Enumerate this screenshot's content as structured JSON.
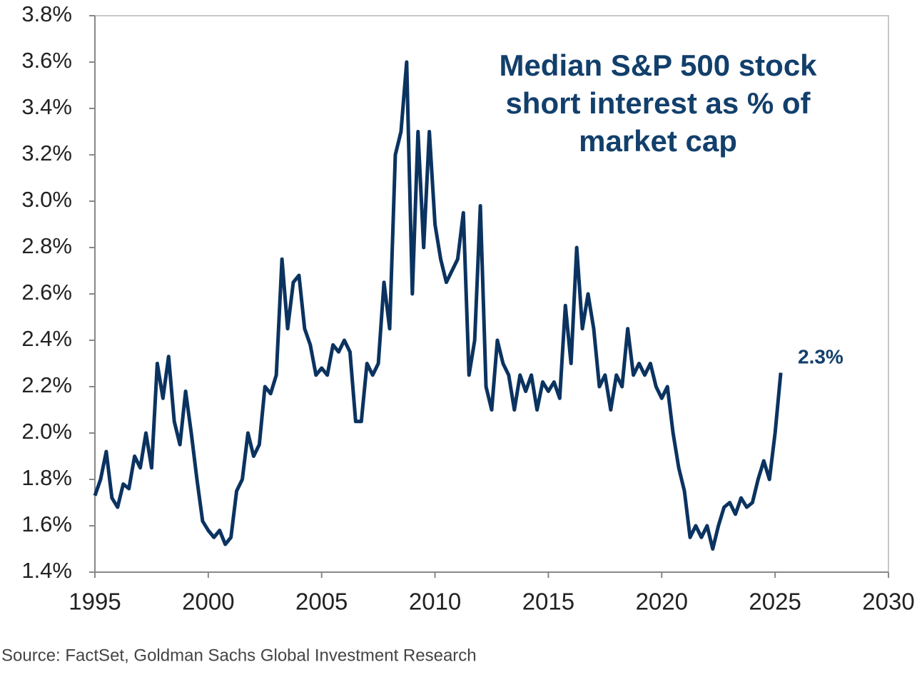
{
  "chart_data": {
    "type": "line",
    "title": [
      "Median S&P 500 stock",
      "short interest as % of",
      "market cap"
    ],
    "source": "Source: FactSet, Goldman Sachs Global Investment Research",
    "annotation": "2.3%",
    "xlim": [
      1995,
      2030
    ],
    "xticks": [
      1995,
      2000,
      2005,
      2010,
      2015,
      2020,
      2025,
      2030
    ],
    "ylim": [
      1.4,
      3.8
    ],
    "yticks": [
      {
        "value": 1.4,
        "label": "1.4%"
      },
      {
        "value": 1.6,
        "label": "1.6%"
      },
      {
        "value": 1.8,
        "label": "1.8%"
      },
      {
        "value": 2.0,
        "label": "2.0%"
      },
      {
        "value": 2.2,
        "label": "2.2%"
      },
      {
        "value": 2.4,
        "label": "2.4%"
      },
      {
        "value": 2.6,
        "label": "2.6%"
      },
      {
        "value": 2.8,
        "label": "2.8%"
      },
      {
        "value": 3.0,
        "label": "3.0%"
      },
      {
        "value": 3.2,
        "label": "3.2%"
      },
      {
        "value": 3.4,
        "label": "3.4%"
      },
      {
        "value": 3.6,
        "label": "3.6%"
      },
      {
        "value": 3.8,
        "label": "3.8%"
      }
    ],
    "x": [
      1995,
      1995.25,
      1995.5,
      1995.75,
      1996,
      1996.25,
      1996.5,
      1996.75,
      1997,
      1997.25,
      1997.5,
      1997.75,
      1998,
      1998.25,
      1998.5,
      1998.75,
      1999,
      1999.25,
      1999.5,
      1999.75,
      2000,
      2000.25,
      2000.5,
      2000.75,
      2001,
      2001.25,
      2001.5,
      2001.75,
      2002,
      2002.25,
      2002.5,
      2002.75,
      2003,
      2003.25,
      2003.5,
      2003.75,
      2004,
      2004.25,
      2004.5,
      2004.75,
      2005,
      2005.25,
      2005.5,
      2005.75,
      2006,
      2006.25,
      2006.5,
      2006.75,
      2007,
      2007.25,
      2007.5,
      2007.75,
      2008,
      2008.25,
      2008.5,
      2008.75,
      2009,
      2009.25,
      2009.5,
      2009.75,
      2010,
      2010.25,
      2010.5,
      2010.75,
      2011,
      2011.25,
      2011.5,
      2011.75,
      2012,
      2012.25,
      2012.5,
      2012.75,
      2013,
      2013.25,
      2013.5,
      2013.75,
      2014,
      2014.25,
      2014.5,
      2014.75,
      2015,
      2015.25,
      2015.5,
      2015.75,
      2016,
      2016.25,
      2016.5,
      2016.75,
      2017,
      2017.25,
      2017.5,
      2017.75,
      2018,
      2018.25,
      2018.5,
      2018.75,
      2019,
      2019.25,
      2019.5,
      2019.75,
      2020,
      2020.25,
      2020.5,
      2020.75,
      2021,
      2021.25,
      2021.5,
      2021.75,
      2022,
      2022.25,
      2022.5,
      2022.75,
      2023,
      2023.25,
      2023.5,
      2023.75,
      2024,
      2024.25,
      2024.5,
      2024.75,
      2025,
      2025.25
    ],
    "series": [
      {
        "color": "#0b3360",
        "values": [
          1.73,
          1.8,
          1.92,
          1.72,
          1.68,
          1.78,
          1.76,
          1.9,
          1.85,
          2.0,
          1.85,
          2.3,
          2.15,
          2.33,
          2.05,
          1.95,
          2.18,
          2.0,
          1.8,
          1.62,
          1.58,
          1.55,
          1.58,
          1.52,
          1.55,
          1.75,
          1.8,
          2.0,
          1.9,
          1.95,
          2.2,
          2.17,
          2.25,
          2.75,
          2.45,
          2.65,
          2.68,
          2.45,
          2.38,
          2.25,
          2.28,
          2.25,
          2.38,
          2.35,
          2.4,
          2.35,
          2.05,
          2.05,
          2.3,
          2.25,
          2.3,
          2.65,
          2.45,
          3.2,
          3.3,
          3.6,
          2.6,
          3.3,
          2.8,
          3.3,
          2.9,
          2.75,
          2.65,
          2.7,
          2.75,
          2.95,
          2.25,
          2.4,
          2.98,
          2.2,
          2.1,
          2.4,
          2.3,
          2.25,
          2.1,
          2.25,
          2.18,
          2.25,
          2.1,
          2.22,
          2.18,
          2.22,
          2.15,
          2.55,
          2.3,
          2.8,
          2.45,
          2.6,
          2.45,
          2.2,
          2.25,
          2.1,
          2.25,
          2.2,
          2.45,
          2.25,
          2.3,
          2.25,
          2.3,
          2.2,
          2.15,
          2.2,
          2.0,
          1.85,
          1.75,
          1.55,
          1.6,
          1.55,
          1.6,
          1.5,
          1.6,
          1.68,
          1.7,
          1.65,
          1.72,
          1.68,
          1.7,
          1.8,
          1.88,
          1.8,
          2.0,
          2.26
        ]
      }
    ]
  }
}
